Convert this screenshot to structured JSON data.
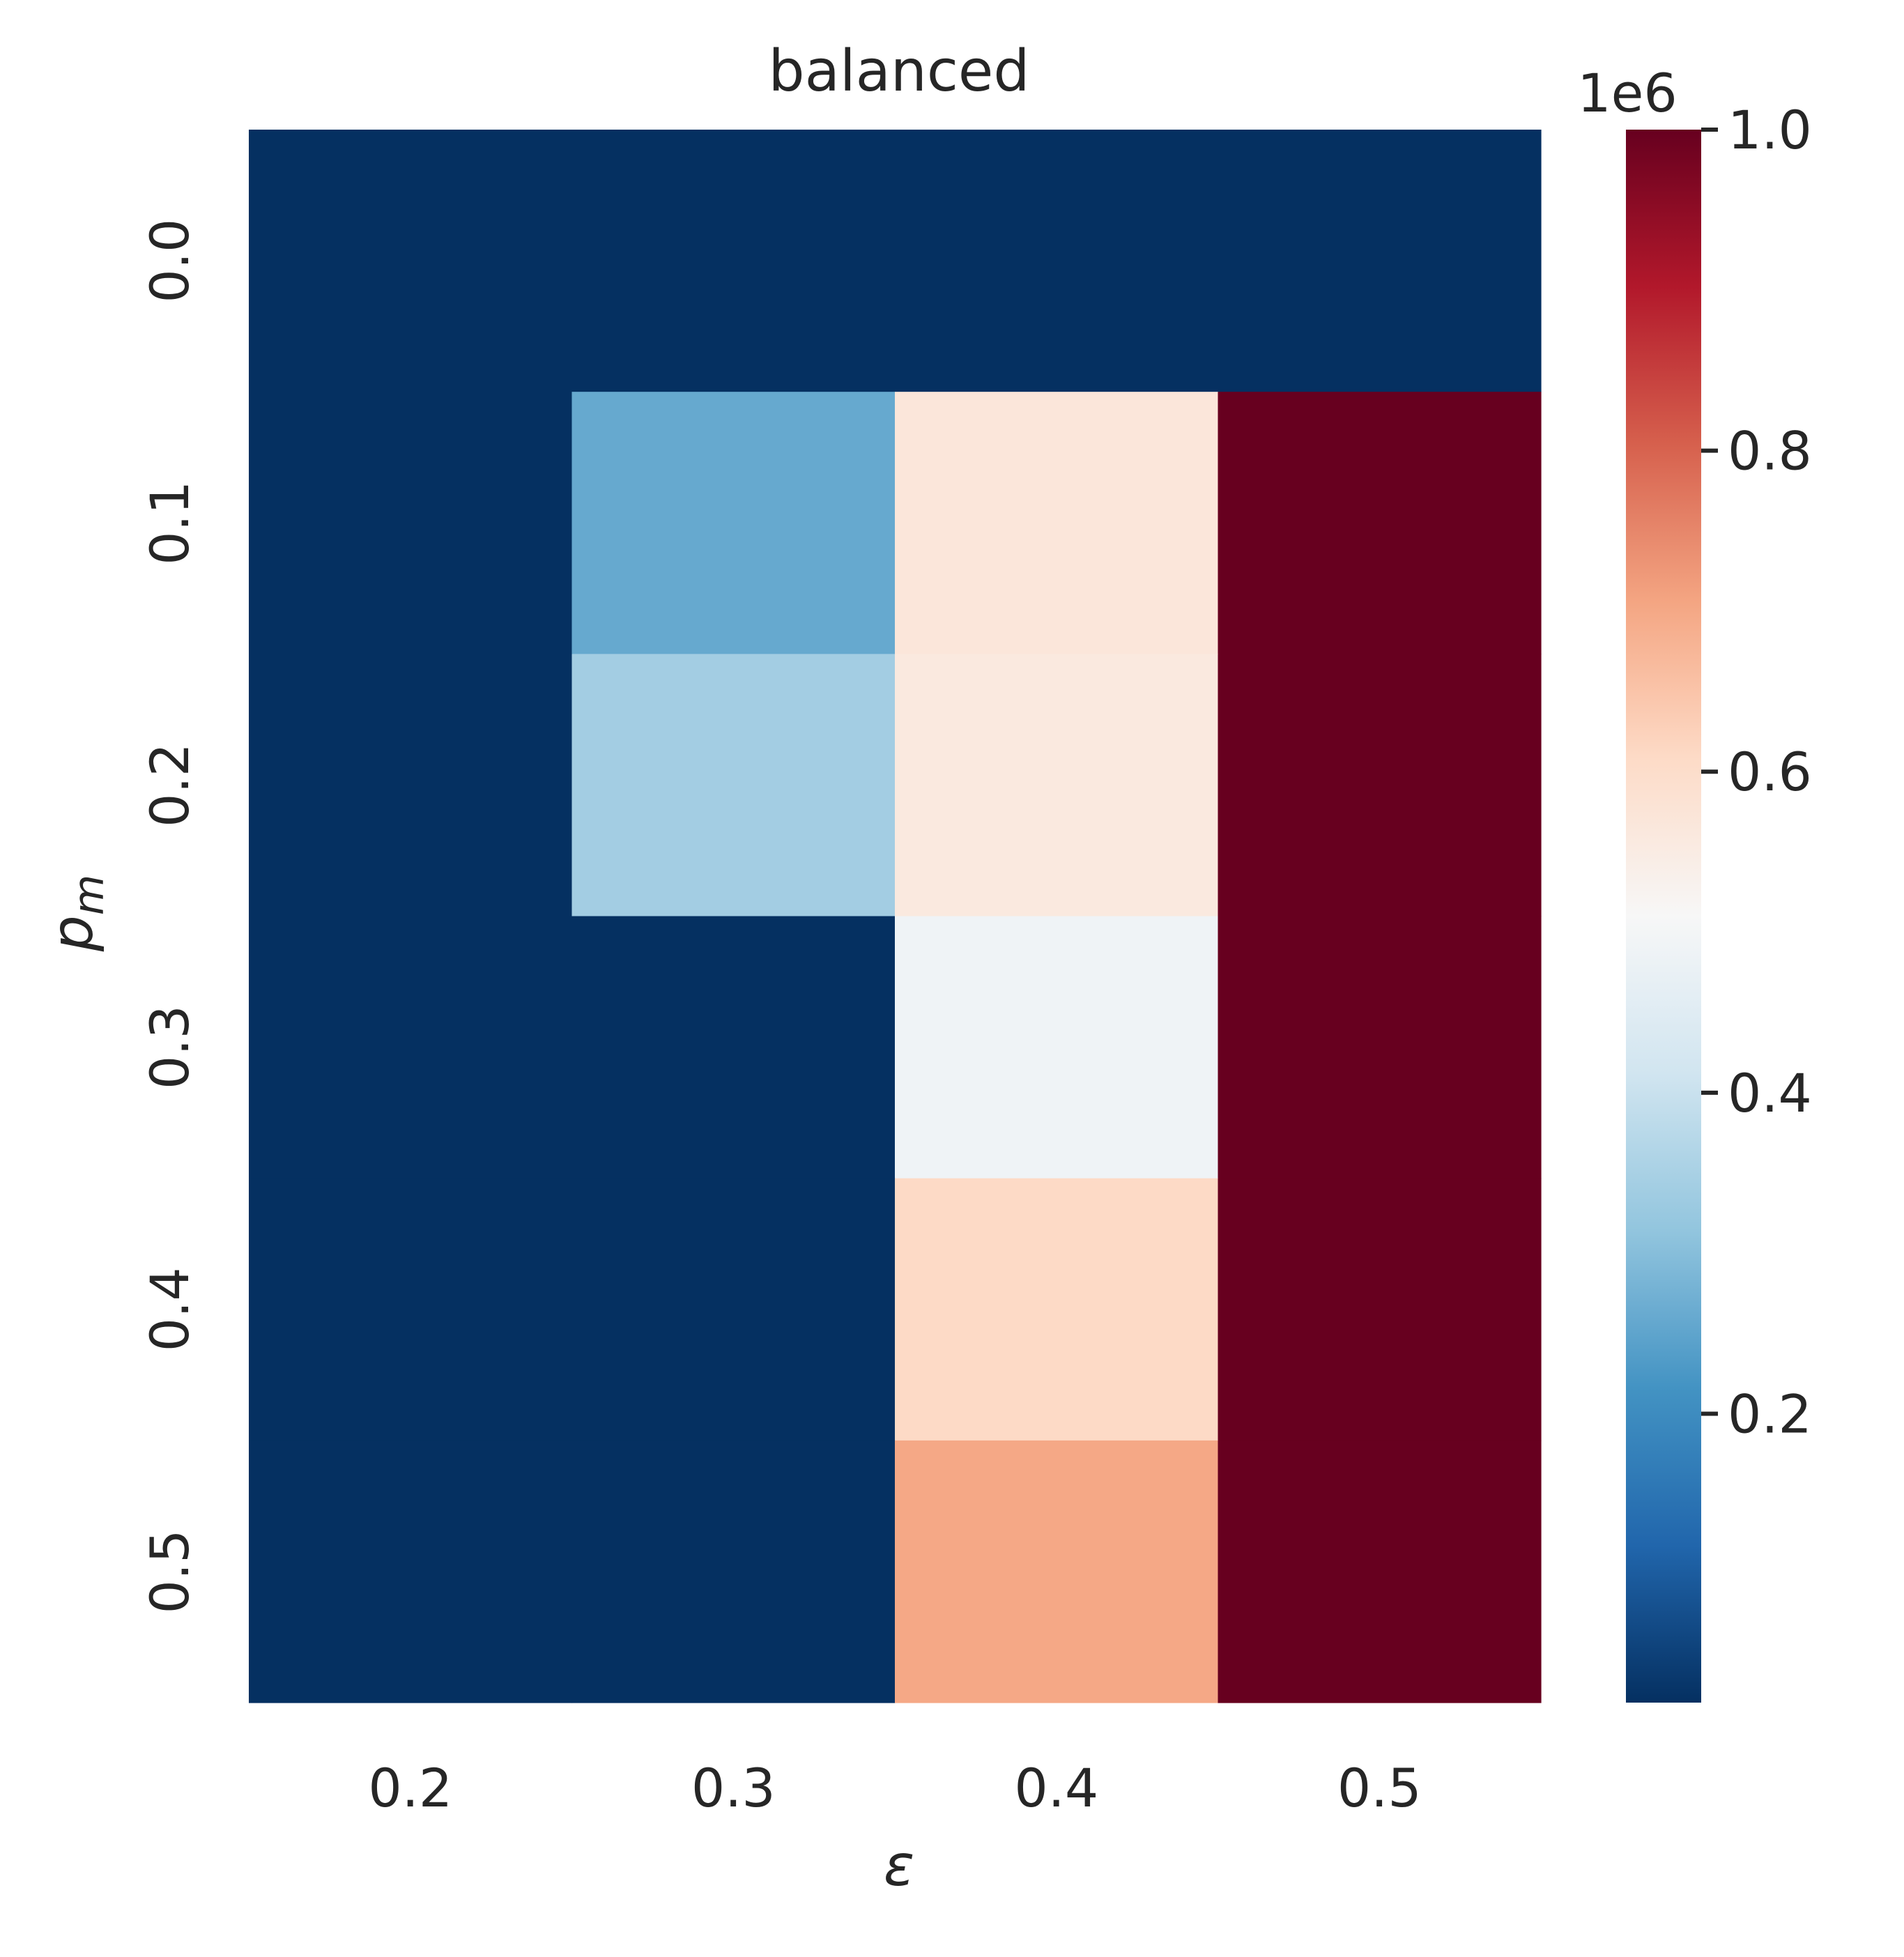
{
  "chart_data": {
    "type": "heatmap",
    "title": "balanced",
    "xlabel": "ε",
    "ylabel_main": "p",
    "ylabel_sub": "m",
    "x_categories": [
      "0.2",
      "0.3",
      "0.4",
      "0.5"
    ],
    "y_categories": [
      "0.0",
      "0.1",
      "0.2",
      "0.3",
      "0.4",
      "0.5"
    ],
    "values": [
      [
        0.02,
        0.02,
        0.02,
        0.02
      ],
      [
        0.02,
        0.26,
        0.57,
        1.0
      ],
      [
        0.02,
        0.34,
        0.56,
        1.0
      ],
      [
        0.02,
        0.02,
        0.49,
        1.0
      ],
      [
        0.02,
        0.02,
        0.61,
        1.0
      ],
      [
        0.02,
        0.02,
        0.7,
        1.0
      ]
    ],
    "value_scale": 1000000,
    "colorbar": {
      "colormap": "RdBu_r",
      "range": [
        0.02,
        1.0
      ],
      "ticks": [
        "0.2",
        "0.4",
        "0.6",
        "0.8",
        "1.0"
      ],
      "tick_values": [
        0.2,
        0.4,
        0.6,
        0.8,
        1.0
      ],
      "offset_label": "1e6"
    },
    "grid": false
  }
}
